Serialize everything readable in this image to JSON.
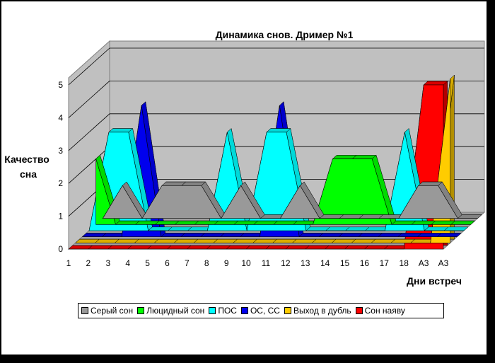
{
  "chart_data": {
    "type": "area",
    "title": "Динамика снов.  Дример №1",
    "xlabel": "Дни встреч",
    "ylabel": "Качество сна",
    "ylim": [
      0,
      5
    ],
    "yticks": [
      "0",
      "1",
      "2",
      "3",
      "4",
      "5"
    ],
    "categories": [
      "1",
      "2",
      "3",
      "4",
      "5",
      "6",
      "7",
      "8",
      "9",
      "10",
      "11",
      "12",
      "13",
      "14",
      "15",
      "16",
      "17",
      "18",
      "А3",
      "А3"
    ],
    "grid": true,
    "legend_position": "bottom",
    "series": [
      {
        "name": "Серый сон",
        "color": "#999999",
        "values": [
          0,
          1,
          0,
          1,
          1,
          1,
          0,
          1,
          0,
          0,
          1,
          0,
          0,
          0,
          0,
          0,
          1,
          1,
          0,
          0
        ]
      },
      {
        "name": "Люцидный сон",
        "color": "#00ff00",
        "values": [
          2,
          0,
          0,
          0,
          0,
          0,
          0,
          0,
          0,
          0,
          0,
          0,
          2,
          2,
          2,
          0,
          0,
          0,
          0,
          0
        ]
      },
      {
        "name": "ПОС",
        "color": "#00ffff",
        "values": [
          0,
          3,
          3,
          0,
          0,
          0,
          0,
          3,
          0,
          3,
          3,
          0,
          0,
          0,
          0,
          0,
          3,
          0,
          0,
          0
        ]
      },
      {
        "name": "ОС, СС",
        "color": "#0000ee",
        "values": [
          0,
          0,
          0,
          4,
          0,
          0,
          0,
          0,
          0,
          0,
          4,
          0,
          0,
          0,
          0,
          0,
          0,
          0,
          0,
          0
        ]
      },
      {
        "name": "Выход в дубль",
        "color": "#ffcc00",
        "values": [
          0,
          0,
          0,
          0,
          0,
          0,
          0,
          0,
          0,
          0,
          0,
          0,
          0,
          0,
          0,
          0,
          0,
          0,
          0,
          5
        ]
      },
      {
        "name": "Сон наяву",
        "color": "#ff0000",
        "values": [
          0,
          0,
          0,
          0,
          0,
          0,
          0,
          0,
          0,
          0,
          0,
          0,
          0,
          0,
          0,
          0,
          0,
          0,
          5,
          5
        ]
      }
    ]
  }
}
